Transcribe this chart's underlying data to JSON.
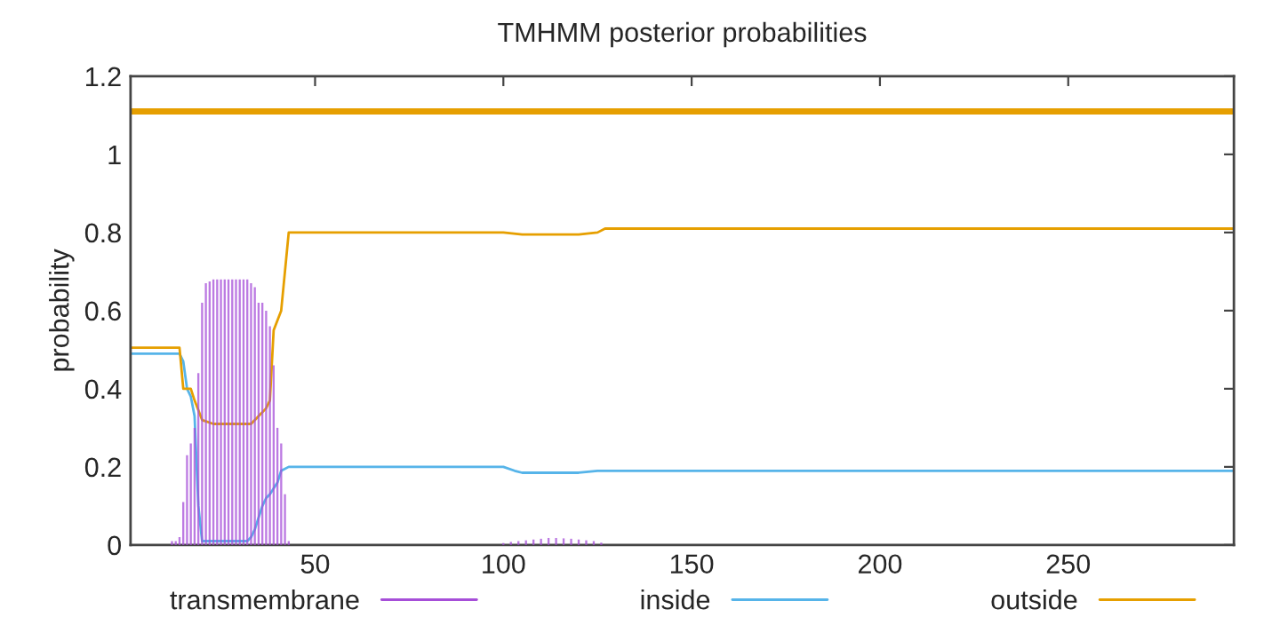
{
  "chart_data": {
    "type": "line",
    "title": "TMHMM posterior probabilities",
    "ylabel": "probability",
    "xlim": [
      1,
      294
    ],
    "xticks": [
      50,
      100,
      150,
      200,
      250
    ],
    "ylim": [
      0,
      1.2
    ],
    "yticks": [
      0,
      0.2,
      0.4,
      0.6,
      0.8,
      1,
      1.2
    ],
    "legend": "bottom",
    "grid": false,
    "series": [
      {
        "name": "transmembrane",
        "type": "bar",
        "color": "#a64ed8",
        "x": [
          12,
          13,
          14,
          15,
          16,
          17,
          18,
          19,
          20,
          21,
          22,
          23,
          24,
          25,
          26,
          27,
          28,
          29,
          30,
          31,
          32,
          33,
          34,
          35,
          36,
          37,
          38,
          39,
          40,
          41,
          42,
          43,
          100,
          102,
          104,
          106,
          108,
          110,
          112,
          114,
          116,
          118,
          120,
          122,
          124,
          126
        ],
        "values": [
          0.01,
          0.01,
          0.02,
          0.11,
          0.23,
          0.26,
          0.3,
          0.44,
          0.62,
          0.67,
          0.675,
          0.68,
          0.68,
          0.68,
          0.68,
          0.68,
          0.68,
          0.68,
          0.68,
          0.68,
          0.68,
          0.67,
          0.66,
          0.62,
          0.62,
          0.6,
          0.56,
          0.46,
          0.3,
          0.26,
          0.13,
          0.01,
          0.005,
          0.008,
          0.01,
          0.012,
          0.014,
          0.016,
          0.018,
          0.018,
          0.017,
          0.016,
          0.014,
          0.012,
          0.01,
          0.006
        ]
      },
      {
        "name": "inside",
        "type": "line",
        "color": "#56b4e9",
        "x": [
          1,
          14,
          15,
          16,
          17,
          18,
          19,
          20,
          32,
          33,
          34,
          36,
          37,
          38,
          40,
          41,
          43,
          100,
          103,
          105,
          120,
          125,
          294
        ],
        "values": [
          0.49,
          0.49,
          0.47,
          0.4,
          0.38,
          0.33,
          0.1,
          0.01,
          0.01,
          0.02,
          0.04,
          0.1,
          0.12,
          0.13,
          0.16,
          0.19,
          0.2,
          0.2,
          0.19,
          0.185,
          0.185,
          0.19,
          0.19
        ]
      },
      {
        "name": "outside",
        "type": "line",
        "color": "#e69f00",
        "x": [
          1,
          14,
          15,
          17,
          18,
          20,
          23,
          33,
          35,
          37,
          38,
          39,
          41,
          43,
          100,
          105,
          120,
          125,
          127,
          294
        ],
        "values": [
          0.505,
          0.505,
          0.4,
          0.4,
          0.37,
          0.32,
          0.31,
          0.31,
          0.33,
          0.35,
          0.37,
          0.55,
          0.6,
          0.8,
          0.8,
          0.795,
          0.795,
          0.8,
          0.81,
          0.81
        ]
      },
      {
        "color": "#e69f00",
        "x": [
          1,
          294
        ],
        "values": [
          1.11,
          1.11
        ]
      }
    ]
  }
}
